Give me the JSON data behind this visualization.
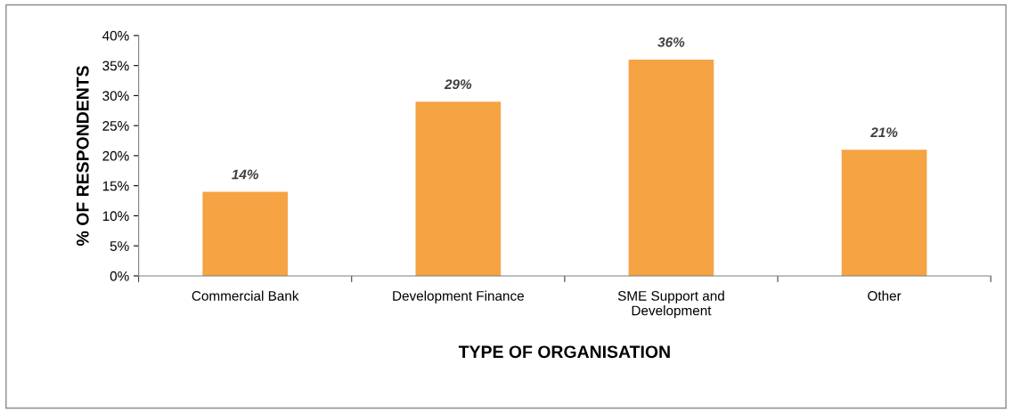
{
  "chart_data": {
    "type": "bar",
    "xlabel": "TYPE OF ORGANISATION",
    "ylabel": "% OF RESPONDENTS",
    "categories": [
      "Commercial Bank",
      "Development Finance",
      "SME Support and\nDevelopment",
      "Other"
    ],
    "values": [
      14,
      29,
      36,
      21
    ],
    "value_labels": [
      "14%",
      "29%",
      "36%",
      "21%"
    ],
    "color": "#f5a343",
    "ylim": [
      0,
      40
    ],
    "yticks": [
      {
        "value": 0,
        "label": "0%"
      },
      {
        "value": 5,
        "label": "5%"
      },
      {
        "value": 10,
        "label": "10%"
      },
      {
        "value": 15,
        "label": "15%"
      },
      {
        "value": 20,
        "label": "20%"
      },
      {
        "value": 25,
        "label": "25%"
      },
      {
        "value": 30,
        "label": "30%"
      },
      {
        "value": 35,
        "label": "35%"
      },
      {
        "value": 40,
        "label": "40%"
      }
    ],
    "grid": false,
    "legend": false
  }
}
